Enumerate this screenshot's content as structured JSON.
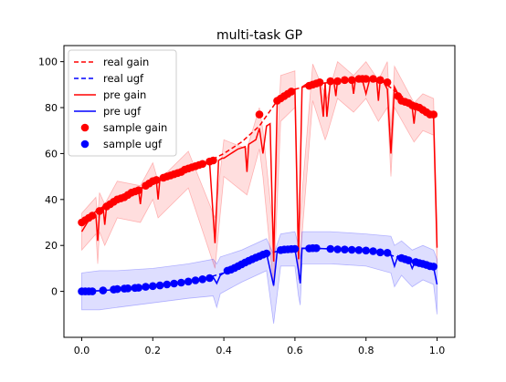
{
  "chart_data": {
    "type": "line",
    "title": "multi-task GP",
    "xlabel": "",
    "ylabel": "",
    "xlim": [
      -0.05,
      1.05
    ],
    "ylim": [
      -20,
      107
    ],
    "xticks": [
      0.0,
      0.2,
      0.4,
      0.6,
      0.8,
      1.0
    ],
    "xtick_labels": [
      "0.0",
      "0.2",
      "0.4",
      "0.6",
      "0.8",
      "1.0"
    ],
    "yticks": [
      0,
      20,
      40,
      60,
      80,
      100
    ],
    "ytick_labels": [
      "0",
      "20",
      "40",
      "60",
      "80",
      "100"
    ],
    "grid": false,
    "legend_position": "top-left",
    "legend": [
      {
        "label": "real gain",
        "color": "#ff0000",
        "style": "dashed-line"
      },
      {
        "label": "real ugf",
        "color": "#0000ff",
        "style": "dashed-line"
      },
      {
        "label": "pre gain",
        "color": "#ff0000",
        "style": "solid-line"
      },
      {
        "label": "pre ugf",
        "color": "#0000ff",
        "style": "solid-line"
      },
      {
        "label": "sample gain",
        "color": "#ff0000",
        "style": "marker"
      },
      {
        "label": "sample ugf",
        "color": "#0000ff",
        "style": "marker"
      }
    ],
    "series": [
      {
        "name": "real gain",
        "kind": "dashed-line",
        "color": "#ff0000",
        "x": [
          0.0,
          0.05,
          0.1,
          0.15,
          0.2,
          0.25,
          0.3,
          0.35,
          0.4,
          0.45,
          0.5,
          0.55,
          0.6,
          0.65,
          0.7,
          0.75,
          0.8,
          0.85,
          0.9,
          0.95,
          1.0
        ],
        "y": [
          30,
          36,
          40,
          44,
          47,
          50,
          53,
          56,
          60,
          65,
          72,
          83,
          88,
          90,
          91,
          92,
          92,
          91,
          85,
          80,
          76
        ]
      },
      {
        "name": "real ugf",
        "kind": "dashed-line",
        "color": "#0000ff",
        "x": [
          0.0,
          0.05,
          0.1,
          0.15,
          0.2,
          0.25,
          0.3,
          0.35,
          0.4,
          0.45,
          0.5,
          0.55,
          0.6,
          0.65,
          0.7,
          0.75,
          0.8,
          0.85,
          0.9,
          0.95,
          1.0
        ],
        "y": [
          0,
          0.3,
          0.8,
          1.4,
          2.2,
          3.2,
          4.3,
          5.8,
          8,
          11,
          15,
          17.5,
          18.5,
          18.8,
          18.5,
          18,
          17.7,
          16.5,
          14.5,
          12,
          10.5
        ]
      },
      {
        "name": "pre gain",
        "kind": "solid-line",
        "color": "#ff0000",
        "x": [
          0.0,
          0.02,
          0.04,
          0.045,
          0.05,
          0.06,
          0.065,
          0.07,
          0.09,
          0.1,
          0.12,
          0.14,
          0.16,
          0.165,
          0.17,
          0.19,
          0.2,
          0.21,
          0.215,
          0.22,
          0.25,
          0.3,
          0.34,
          0.36,
          0.375,
          0.385,
          0.395,
          0.4,
          0.42,
          0.44,
          0.46,
          0.465,
          0.47,
          0.49,
          0.5,
          0.51,
          0.52,
          0.53,
          0.54,
          0.55,
          0.56,
          0.58,
          0.6,
          0.61,
          0.62,
          0.63,
          0.65,
          0.67,
          0.68,
          0.685,
          0.69,
          0.7,
          0.71,
          0.715,
          0.72,
          0.73,
          0.75,
          0.76,
          0.765,
          0.77,
          0.79,
          0.8,
          0.81,
          0.82,
          0.83,
          0.835,
          0.84,
          0.85,
          0.86,
          0.87,
          0.88,
          0.89,
          0.9,
          0.92,
          0.93,
          0.935,
          0.94,
          0.96,
          0.98,
          0.99,
          1.0
        ],
        "y": [
          26,
          31,
          33,
          22,
          34,
          37,
          29,
          37,
          39,
          40,
          42,
          43,
          44,
          38,
          45,
          47,
          48,
          48,
          40,
          49,
          51,
          53,
          55,
          56,
          21,
          57,
          58,
          58,
          60,
          62,
          63,
          52,
          64,
          66,
          71,
          60,
          72,
          73,
          13,
          82,
          84,
          86,
          88,
          14,
          89,
          90,
          91,
          91,
          76,
          91,
          76,
          92,
          91,
          85,
          92,
          92,
          92,
          92,
          86,
          92,
          92,
          86,
          92,
          92,
          92,
          83,
          92,
          91,
          88,
          60,
          89,
          86,
          83,
          81,
          80,
          73,
          80,
          78,
          77,
          76,
          19
        ]
      },
      {
        "name": "pre ugf",
        "kind": "solid-line",
        "color": "#0000ff",
        "x": [
          0.0,
          0.05,
          0.1,
          0.15,
          0.2,
          0.25,
          0.3,
          0.35,
          0.37,
          0.38,
          0.39,
          0.4,
          0.45,
          0.5,
          0.52,
          0.54,
          0.55,
          0.56,
          0.58,
          0.6,
          0.61,
          0.615,
          0.62,
          0.65,
          0.7,
          0.75,
          0.8,
          0.85,
          0.87,
          0.88,
          0.89,
          0.9,
          0.92,
          0.93,
          0.94,
          0.96,
          0.98,
          0.99,
          1.0
        ],
        "y": [
          0,
          0.3,
          0.8,
          1.4,
          2.2,
          3.2,
          4.3,
          5.8,
          6.2,
          3.5,
          7,
          8,
          11,
          15,
          16.5,
          2.5,
          17.5,
          18,
          18.5,
          18.5,
          9,
          3.5,
          18.8,
          18.8,
          18.5,
          18,
          17.7,
          16.5,
          16,
          11,
          15.5,
          14.5,
          14,
          10,
          13.5,
          12.5,
          11.5,
          10.5,
          3
        ]
      },
      {
        "name": "sample gain",
        "kind": "marker",
        "color": "#ff0000",
        "x": [
          0.0,
          0.01,
          0.02,
          0.03,
          0.05,
          0.07,
          0.08,
          0.09,
          0.1,
          0.11,
          0.12,
          0.13,
          0.14,
          0.15,
          0.16,
          0.18,
          0.19,
          0.2,
          0.21,
          0.23,
          0.24,
          0.25,
          0.26,
          0.27,
          0.28,
          0.29,
          0.3,
          0.31,
          0.32,
          0.33,
          0.34,
          0.36,
          0.37,
          0.5,
          0.55,
          0.56,
          0.57,
          0.58,
          0.59,
          0.64,
          0.65,
          0.66,
          0.67,
          0.7,
          0.72,
          0.74,
          0.76,
          0.78,
          0.79,
          0.8,
          0.82,
          0.84,
          0.86,
          0.89,
          0.9,
          0.91,
          0.92,
          0.93,
          0.94,
          0.95,
          0.96,
          0.97,
          0.98,
          0.99
        ],
        "y": [
          30,
          31,
          32,
          33,
          35,
          37,
          38,
          39,
          40,
          40.5,
          41,
          42,
          43,
          43.5,
          44,
          46,
          47,
          48,
          48.5,
          49.5,
          50,
          50.5,
          51,
          51.5,
          52,
          53,
          53.5,
          54,
          54.5,
          55,
          55.5,
          56.5,
          57,
          77,
          83,
          84,
          85,
          86,
          87,
          89.5,
          90,
          90.5,
          91,
          91.5,
          91.5,
          92,
          92,
          92.5,
          92.5,
          92.5,
          92.5,
          92,
          91,
          85,
          83,
          82.5,
          82,
          81,
          80.5,
          80,
          79,
          78,
          77,
          77
        ]
      },
      {
        "name": "sample ugf",
        "kind": "marker",
        "color": "#0000ff",
        "x": [
          0.0,
          0.01,
          0.02,
          0.03,
          0.06,
          0.09,
          0.1,
          0.12,
          0.13,
          0.15,
          0.16,
          0.18,
          0.2,
          0.22,
          0.24,
          0.26,
          0.28,
          0.3,
          0.32,
          0.34,
          0.36,
          0.41,
          0.42,
          0.43,
          0.44,
          0.45,
          0.46,
          0.47,
          0.48,
          0.49,
          0.5,
          0.51,
          0.52,
          0.56,
          0.57,
          0.58,
          0.59,
          0.6,
          0.64,
          0.65,
          0.66,
          0.7,
          0.72,
          0.74,
          0.76,
          0.78,
          0.8,
          0.82,
          0.84,
          0.86,
          0.9,
          0.91,
          0.92,
          0.94,
          0.95,
          0.96,
          0.97,
          0.98,
          0.99
        ],
        "y": [
          0,
          0,
          0,
          0,
          0.4,
          0.8,
          1,
          1.2,
          1.3,
          1.5,
          1.6,
          2,
          2.3,
          2.6,
          3,
          3.4,
          3.8,
          4.3,
          4.8,
          5.3,
          5.8,
          9,
          9.5,
          10.2,
          11,
          11.8,
          12.6,
          13.3,
          14,
          14.7,
          15.3,
          16,
          16.5,
          18,
          18.2,
          18.3,
          18.4,
          18.5,
          18.7,
          18.8,
          18.8,
          18.5,
          18.3,
          18.2,
          18.1,
          18,
          17.8,
          17.5,
          17,
          16.8,
          14.5,
          14,
          13.5,
          12.8,
          12.3,
          12,
          11.5,
          11,
          10.8
        ]
      }
    ],
    "bands": [
      {
        "name": "pre gain band",
        "color": "#ff0000",
        "opacity": 0.13,
        "x": [
          0.0,
          0.04,
          0.045,
          0.05,
          0.065,
          0.1,
          0.165,
          0.2,
          0.215,
          0.3,
          0.375,
          0.4,
          0.465,
          0.5,
          0.51,
          0.54,
          0.56,
          0.6,
          0.61,
          0.65,
          0.685,
          0.69,
          0.72,
          0.765,
          0.8,
          0.835,
          0.86,
          0.87,
          0.88,
          0.935,
          0.96,
          0.99,
          1.0
        ],
        "y_low": [
          18,
          25,
          12,
          26,
          20,
          32,
          30,
          40,
          32,
          45,
          10,
          50,
          42,
          62,
          50,
          2,
          74,
          80,
          5,
          83,
          66,
          68,
          84,
          78,
          84,
          74,
          80,
          50,
          80,
          65,
          70,
          68,
          10
        ],
        "y_high": [
          34,
          41,
          32,
          43,
          38,
          48,
          46,
          56,
          48,
          61,
          32,
          66,
          62,
          80,
          70,
          25,
          94,
          96,
          24,
          99,
          86,
          84,
          100,
          94,
          100,
          92,
          100,
          70,
          98,
          82,
          86,
          84,
          30
        ]
      },
      {
        "name": "pre ugf band",
        "color": "#0000ff",
        "opacity": 0.13,
        "x": [
          0.0,
          0.05,
          0.1,
          0.2,
          0.3,
          0.37,
          0.38,
          0.39,
          0.45,
          0.52,
          0.54,
          0.56,
          0.6,
          0.61,
          0.615,
          0.62,
          0.7,
          0.8,
          0.87,
          0.88,
          0.9,
          0.93,
          0.96,
          0.99,
          1.0
        ],
        "y_low": [
          -8,
          -8,
          -7,
          -5,
          -3,
          -2,
          -7,
          -1,
          4,
          9,
          -14,
          11,
          11,
          -2,
          -6,
          12,
          12,
          11,
          8,
          2,
          7,
          2,
          5,
          3,
          -10
        ],
        "y_high": [
          8,
          9,
          9,
          10,
          12,
          14,
          12,
          15,
          18,
          23,
          16,
          25,
          26,
          20,
          14,
          26,
          26,
          25,
          24,
          20,
          22,
          18,
          20,
          18,
          14
        ]
      }
    ]
  }
}
